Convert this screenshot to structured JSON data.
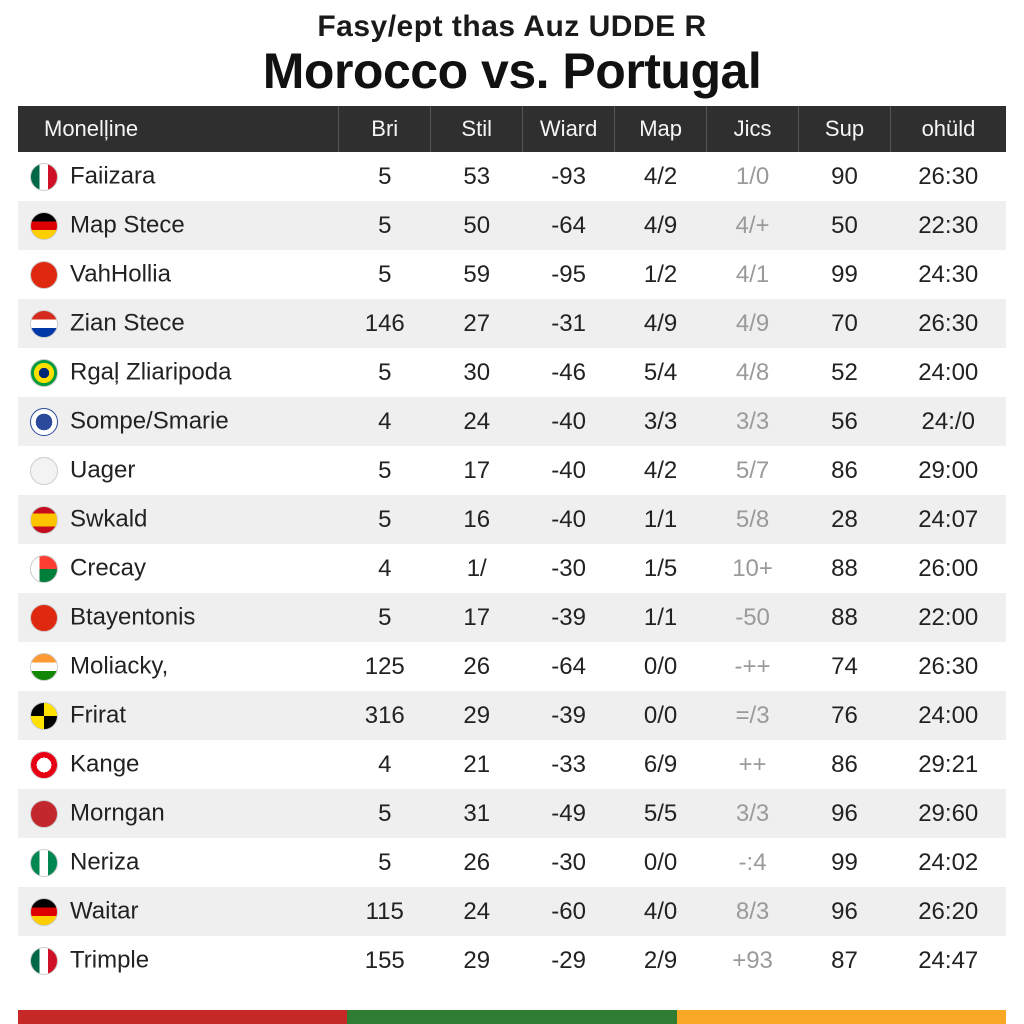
{
  "pretitle": "Fasy/ept thas Auz UDDE R",
  "title": "Morocco vs. Portugal",
  "columns": [
    "Monelļine",
    "Bri",
    "Stil",
    "Wiard",
    "Map",
    "Jics",
    "Sup",
    "ohüld"
  ],
  "header_bg": "#2f2f2f",
  "header_fg": "#f5f5f5",
  "row_colors": [
    "#ffffff",
    "#efefef"
  ],
  "jics_text_color": "#9a9a9a",
  "rows": [
    {
      "flag": "mexico",
      "name": "Faiizara",
      "bri": "5",
      "stil": "53",
      "wiard": "-93",
      "map": "4/2",
      "jics": "1/0",
      "sup": "90",
      "last": "26:30"
    },
    {
      "flag": "germany2",
      "name": "Map Stece",
      "bri": "5",
      "stil": "50",
      "wiard": "-64",
      "map": "4/9",
      "jics": "4/+",
      "sup": "50",
      "last": "22:30"
    },
    {
      "flag": "china",
      "name": "VahHollia",
      "bri": "5",
      "stil": "59",
      "wiard": "-95",
      "map": "1/2",
      "jics": "4/1",
      "sup": "99",
      "last": "24:30"
    },
    {
      "flag": "paraguay",
      "name": "Zian Stece",
      "bri": "146",
      "stil": "27",
      "wiard": "-31",
      "map": "4/9",
      "jics": "4/9",
      "sup": "70",
      "last": "26:30"
    },
    {
      "flag": "brazil",
      "name": "Rgaļ Zliaripoda",
      "bri": "5",
      "stil": "30",
      "wiard": "-46",
      "map": "5/4",
      "jics": "4/8",
      "sup": "52",
      "last": "24:00"
    },
    {
      "flag": "crest1",
      "name": "Sompe/Smarie",
      "bri": "4",
      "stil": "24",
      "wiard": "-40",
      "map": "3/3",
      "jics": "3/3",
      "sup": "56",
      "last": "24:/0"
    },
    {
      "flag": "crest2",
      "name": "Uager",
      "bri": "5",
      "stil": "17",
      "wiard": "-40",
      "map": "4/2",
      "jics": "5/7",
      "sup": "86",
      "last": "29:00"
    },
    {
      "flag": "spain",
      "name": "Swkald",
      "bri": "5",
      "stil": "16",
      "wiard": "-40",
      "map": "1/1",
      "jics": "5/8",
      "sup": "28",
      "last": "24:07"
    },
    {
      "flag": "madag",
      "name": "Crecay",
      "bri": "4",
      "stil": "1/",
      "wiard": "-30",
      "map": "1/5",
      "jics": "10+",
      "sup": "88",
      "last": "26:00"
    },
    {
      "flag": "china",
      "name": "Btayentonis",
      "bri": "5",
      "stil": "17",
      "wiard": "-39",
      "map": "1/1",
      "jics": "-50",
      "sup": "88",
      "last": "22:00"
    },
    {
      "flag": "india",
      "name": "Moliacky,",
      "bri": "125",
      "stil": "26",
      "wiard": "-64",
      "map": "0/0",
      "jics": "-++",
      "sup": "74",
      "last": "26:30"
    },
    {
      "flag": "bvb",
      "name": "Frirat",
      "bri": "316",
      "stil": "29",
      "wiard": "-39",
      "map": "0/0",
      "jics": "=/3",
      "sup": "76",
      "last": "24:00"
    },
    {
      "flag": "tunisia",
      "name": "Kange",
      "bri": "4",
      "stil": "21",
      "wiard": "-33",
      "map": "6/9",
      "jics": "++",
      "sup": "86",
      "last": "29:21"
    },
    {
      "flag": "morocco",
      "name": "Morngan",
      "bri": "5",
      "stil": "31",
      "wiard": "-49",
      "map": "5/5",
      "jics": "3/3",
      "sup": "96",
      "last": "29:60"
    },
    {
      "flag": "nigeria",
      "name": "Neriza",
      "bri": "5",
      "stil": "26",
      "wiard": "-30",
      "map": "0/0",
      "jics": "-:4",
      "sup": "99",
      "last": "24:02"
    },
    {
      "flag": "germany",
      "name": "Waitar",
      "bri": "115",
      "stil": "24",
      "wiard": "-60",
      "map": "4/0",
      "jics": "8/3",
      "sup": "96",
      "last": "26:20"
    },
    {
      "flag": "mexico",
      "name": "Trimple",
      "bri": "155",
      "stil": "29",
      "wiard": "-29",
      "map": "2/9",
      "jics": "+93",
      "sup": "87",
      "last": "24:47"
    }
  ],
  "flag_styles": {
    "mexico": {
      "css": "background: linear-gradient(90deg,#006847 33%,#fff 33%,#fff 66%,#ce1126 66%);"
    },
    "germany2": {
      "css": "background: linear-gradient(#000 33%,#dd0000 33%,#dd0000 66%,#ffce00 66%);"
    },
    "china": {
      "css": "background:#de2910;"
    },
    "paraguay": {
      "css": "background: linear-gradient(#d52b1e 33%,#fff 33%,#fff 66%,#0038a8 66%);"
    },
    "brazil": {
      "css": "background: radial-gradient(circle at 50% 50%, #002776 28%, #fedf00 28%, #fedf00 55%, #009b3a 55%);"
    },
    "crest1": {
      "css": "background: radial-gradient(circle,#2b4a9b 45%,#fff 45%); border-color:#2b4a9b;"
    },
    "crest2": {
      "css": "background:#f3f3f3;"
    },
    "spain": {
      "css": "background: linear-gradient(#c60b1e 25%,#ffc400 25%,#ffc400 75%,#c60b1e 75%);"
    },
    "madag": {
      "css": "background: linear-gradient(90deg,#fff 33%, transparent 33%), linear-gradient(#fc3d32 50%,#007e3a 50%);"
    },
    "india": {
      "css": "background: linear-gradient(#ff9933 33%,#fff 33%,#fff 66%,#138808 66%);"
    },
    "bvb": {
      "css": "background: conic-gradient(#fde100 0 90deg,#000 90deg 180deg,#fde100 180deg 270deg,#000 270deg);"
    },
    "tunisia": {
      "css": "background: radial-gradient(circle at 50% 50%, #fff 40%, #e70013 40%);"
    },
    "morocco": {
      "css": "background:#c1272d;"
    },
    "nigeria": {
      "css": "background: linear-gradient(90deg,#008751 33%,#fff 33%,#fff 66%,#008751 66%);"
    },
    "germany": {
      "css": "background: linear-gradient(#000 33%,#dd0000 33%,#dd0000 66%,#ffce00 66%);"
    }
  },
  "bottom_bar_colors": [
    "#c62828",
    "#2e7d32",
    "#f9a825"
  ]
}
